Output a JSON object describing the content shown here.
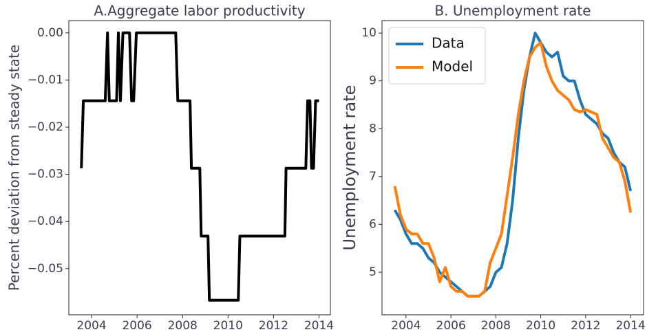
{
  "chart_data": [
    {
      "type": "line",
      "title": "A.Aggregate labor productivity",
      "y_label": "Percent deviation from steady state",
      "x": [
        2003.55,
        2003.64,
        2004.6,
        2004.7,
        2004.78,
        2005.1,
        2005.18,
        2005.27,
        2005.38,
        2005.67,
        2005.76,
        2005.85,
        2005.97,
        2007.7,
        2007.79,
        2008.33,
        2008.39,
        2008.76,
        2008.82,
        2009.12,
        2009.18,
        2010.45,
        2010.52,
        2012.5,
        2012.55,
        2013.42,
        2013.5,
        2013.6,
        2013.67,
        2013.76,
        2013.85,
        2014.0
      ],
      "values": [
        -0.0287,
        -0.0144,
        -0.0144,
        0,
        -0.0144,
        -0.0144,
        0,
        -0.0144,
        0,
        0,
        -0.0144,
        -0.0144,
        0,
        0,
        -0.0144,
        -0.0144,
        -0.0287,
        -0.0287,
        -0.0431,
        -0.0431,
        -0.0567,
        -0.0567,
        -0.0431,
        -0.0431,
        -0.0287,
        -0.0287,
        -0.0144,
        -0.0144,
        -0.0287,
        -0.0287,
        -0.0144,
        -0.0144
      ],
      "color": "#000000",
      "xlim": [
        2003.0,
        2014.5
      ],
      "ylim": [
        -0.0598,
        0.0026
      ],
      "xticks": [
        2004,
        2006,
        2008,
        2010,
        2012,
        2014
      ],
      "yticks": [
        {
          "value": 0,
          "label": "0.00"
        },
        {
          "value": -0.01,
          "label": "−0.01"
        },
        {
          "value": -0.02,
          "label": "−0.02"
        },
        {
          "value": -0.03,
          "label": "−0.03"
        },
        {
          "value": -0.04,
          "label": "−0.04"
        },
        {
          "value": -0.05,
          "label": "−0.05"
        }
      ]
    },
    {
      "type": "line",
      "title": "B. Unemployment rate",
      "y_label": "Unemployment rate",
      "legend": "upper left",
      "x": [
        2003.5,
        2003.75,
        2004,
        2004.25,
        2004.5,
        2004.75,
        2005,
        2005.25,
        2005.5,
        2005.75,
        2006,
        2006.25,
        2006.5,
        2006.75,
        2007,
        2007.25,
        2007.5,
        2007.75,
        2008,
        2008.25,
        2008.5,
        2008.75,
        2009,
        2009.25,
        2009.5,
        2009.75,
        2010,
        2010.25,
        2010.5,
        2010.75,
        2011,
        2011.25,
        2011.5,
        2011.75,
        2012,
        2012.25,
        2012.5,
        2012.75,
        2013,
        2013.25,
        2013.5,
        2013.75,
        2014
      ],
      "series": [
        {
          "name": "Data",
          "color": "#1f77b4",
          "values": [
            6.3,
            6.1,
            5.8,
            5.6,
            5.6,
            5.5,
            5.3,
            5.2,
            5.0,
            4.9,
            4.8,
            4.7,
            4.6,
            4.5,
            4.5,
            4.5,
            4.6,
            4.7,
            5.0,
            5.1,
            5.6,
            6.5,
            7.8,
            8.8,
            9.5,
            10.0,
            9.8,
            9.6,
            9.5,
            9.6,
            9.1,
            9.0,
            9.0,
            8.6,
            8.3,
            8.2,
            8.1,
            7.9,
            7.8,
            7.5,
            7.3,
            7.2,
            6.7
          ]
        },
        {
          "name": "Model",
          "color": "#ff7f0e",
          "values": [
            6.8,
            6.2,
            5.9,
            5.8,
            5.8,
            5.6,
            5.6,
            5.3,
            4.8,
            5.1,
            4.7,
            4.6,
            4.6,
            4.5,
            4.5,
            4.5,
            4.6,
            5.2,
            5.5,
            5.8,
            6.6,
            7.4,
            8.3,
            9.0,
            9.5,
            9.7,
            9.8,
            9.3,
            9.0,
            8.8,
            8.7,
            8.6,
            8.4,
            8.35,
            8.4,
            8.35,
            8.3,
            7.8,
            7.6,
            7.4,
            7.3,
            6.9,
            6.25
          ]
        }
      ],
      "xlim": [
        2002.93,
        2014.58
      ],
      "ylim": [
        4.11,
        10.26
      ],
      "xticks": [
        2004,
        2006,
        2008,
        2010,
        2012,
        2014
      ],
      "yticks": [
        5,
        6,
        7,
        8,
        9,
        10
      ]
    }
  ]
}
